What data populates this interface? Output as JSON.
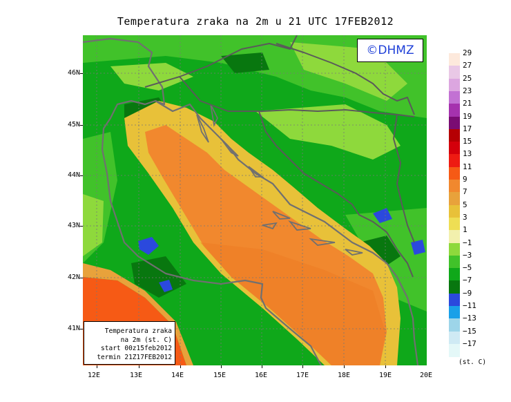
{
  "title": "Temperatura zraka na 2m u 21 UTC 17FEB2012",
  "logo": "©DHMZ",
  "info_box": {
    "line1": "Temperatura zraka",
    "line2": "na 2m (st. C)",
    "line3": "start 00z15feb2012",
    "line4": "termin 21Z17FEB2012"
  },
  "lat_labels": [
    "46N",
    "45N",
    "44N",
    "43N",
    "42N",
    "41N"
  ],
  "lon_labels": [
    "12E",
    "13E",
    "14E",
    "15E",
    "16E",
    "17E",
    "18E",
    "19E",
    "20E"
  ],
  "legend": {
    "unit": "(st. C)",
    "labels": [
      "29",
      "27",
      "25",
      "23",
      "21",
      "19",
      "17",
      "15",
      "13",
      "11",
      "9",
      "7",
      "5",
      "3",
      "1",
      "−1",
      "−3",
      "−5",
      "−7",
      "−9",
      "−11",
      "−13",
      "−15",
      "−17"
    ],
    "colors": [
      "#fde9dc",
      "#e9c8e6",
      "#dca6e0",
      "#c271d3",
      "#a532ae",
      "#7a0c73",
      "#b50003",
      "#d4000b",
      "#ee1b12",
      "#f65a15",
      "#f1882e",
      "#e8a23b",
      "#e8c139",
      "#eede54",
      "#f2f0ad",
      "#8ed93c",
      "#41c22a",
      "#0fa81a",
      "#08770f",
      "#2b49dd",
      "#1aa0e8",
      "#9dd5e9",
      "#cfeaf4",
      "#e4f8f8"
    ]
  },
  "map_extent": {
    "lon": [
      11.8,
      20.0
    ],
    "lat": [
      40.25,
      46.75
    ]
  }
}
